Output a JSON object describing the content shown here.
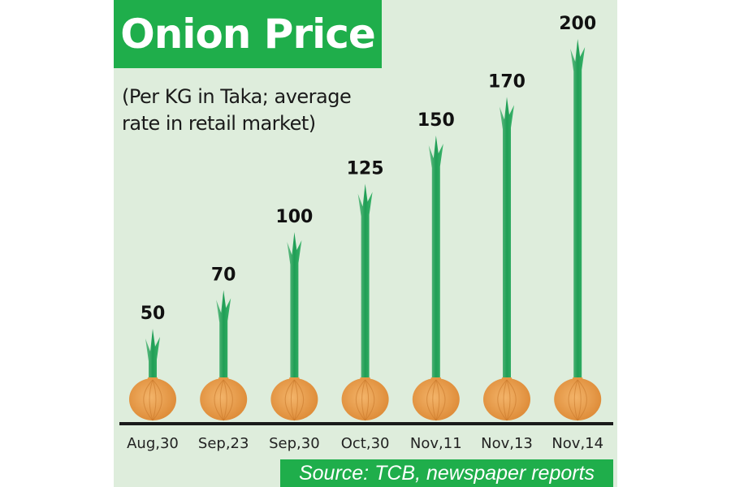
{
  "chart_data": {
    "type": "bar",
    "title": "Onion Price",
    "subtitle": "(Per KG in Taka; average rate in retail market)",
    "subtitle_lines": [
      "(Per KG in Taka; average",
      "rate in retail market)"
    ],
    "categories": [
      "Aug,30",
      "Sep,23",
      "Sep,30",
      "Oct,30",
      "Nov,11",
      "Nov,13",
      "Nov,14"
    ],
    "values": [
      50,
      70,
      100,
      125,
      150,
      170,
      200
    ],
    "xlabel": "",
    "ylabel": "",
    "grid": false,
    "source": "Source: TCB, newspaper reports",
    "colors": {
      "accent": "#1fae4b",
      "background": "#deeddc",
      "stalk": "#22a85a",
      "bulb": "#e99a45",
      "baseline": "#1a1a1a"
    }
  }
}
